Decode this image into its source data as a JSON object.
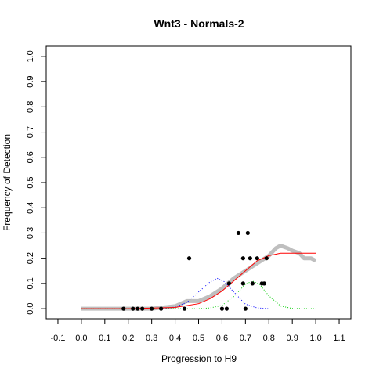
{
  "chart_data": {
    "type": "scatter",
    "title": "Wnt3 - Normals-2",
    "xlabel": "Progression to H9",
    "ylabel": "Frequency of Detection",
    "xlim": [
      -0.15,
      1.15
    ],
    "ylim": [
      -0.04,
      1.04
    ],
    "xticks": [
      -0.1,
      0.0,
      0.1,
      0.2,
      0.3,
      0.4,
      0.5,
      0.6,
      0.7,
      0.8,
      0.9,
      1.0,
      1.1
    ],
    "xtick_labels": [
      "-0.1",
      "0.0",
      "0.1",
      "0.2",
      "0.3",
      "0.4",
      "0.5",
      "0.6",
      "0.7",
      "0.8",
      "0.9",
      "1.0",
      "1.1"
    ],
    "yticks": [
      0.0,
      0.1,
      0.2,
      0.3,
      0.4,
      0.5,
      0.6,
      0.7,
      0.8,
      0.9,
      1.0
    ],
    "ytick_labels": [
      "0.0",
      "0.1",
      "0.2",
      "0.3",
      "0.4",
      "0.5",
      "0.6",
      "0.7",
      "0.8",
      "0.9",
      "1.0"
    ],
    "grid": false,
    "colors": {
      "points": "#000000",
      "smooth": "#bfbfbf",
      "fit": "#ff0000",
      "blue_density": "#0000ff",
      "green_density": "#00cc00"
    },
    "series": [
      {
        "type": "scatter",
        "x": [
          0.18,
          0.22,
          0.24,
          0.26,
          0.3,
          0.34,
          0.44,
          0.46,
          0.6,
          0.62,
          0.63,
          0.67,
          0.69,
          0.69,
          0.7,
          0.71,
          0.72,
          0.73,
          0.75,
          0.77,
          0.78,
          0.79
        ],
        "y": [
          0.0,
          0.0,
          0.0,
          0.0,
          0.0,
          0.0,
          0.0,
          0.2,
          0.0,
          0.0,
          0.1,
          0.3,
          0.2,
          0.1,
          0.0,
          0.3,
          0.2,
          0.1,
          0.2,
          0.1,
          0.1,
          0.2
        ]
      },
      {
        "type": "line",
        "style": "thick-gray",
        "x": [
          0.0,
          0.1,
          0.2,
          0.3,
          0.4,
          0.45,
          0.5,
          0.55,
          0.6,
          0.65,
          0.7,
          0.75,
          0.8,
          0.83,
          0.85,
          0.88,
          0.9,
          0.93,
          0.95,
          0.98,
          1.0
        ],
        "y": [
          0.0,
          0.0,
          0.0,
          0.0,
          0.01,
          0.03,
          0.03,
          0.05,
          0.08,
          0.12,
          0.15,
          0.18,
          0.21,
          0.24,
          0.25,
          0.24,
          0.23,
          0.22,
          0.2,
          0.2,
          0.19
        ]
      },
      {
        "type": "line",
        "style": "red",
        "x": [
          0.0,
          0.2,
          0.4,
          0.5,
          0.55,
          0.6,
          0.65,
          0.7,
          0.75,
          0.8,
          0.85,
          0.9,
          1.0
        ],
        "y": [
          0.0,
          0.0,
          0.005,
          0.02,
          0.04,
          0.07,
          0.11,
          0.15,
          0.19,
          0.21,
          0.22,
          0.22,
          0.22
        ]
      },
      {
        "type": "line",
        "style": "blue-dotted",
        "x": [
          0.35,
          0.4,
          0.45,
          0.5,
          0.55,
          0.58,
          0.61,
          0.65,
          0.7,
          0.75,
          0.8
        ],
        "y": [
          0.0,
          0.007,
          0.025,
          0.066,
          0.107,
          0.12,
          0.107,
          0.066,
          0.018,
          0.003,
          0.0
        ]
      },
      {
        "type": "line",
        "style": "green-dotted",
        "x": [
          0.0,
          0.5,
          0.55,
          0.6,
          0.65,
          0.7,
          0.73,
          0.76,
          0.8,
          0.85,
          0.9,
          1.0
        ],
        "y": [
          0.0,
          0.0,
          0.003,
          0.013,
          0.048,
          0.097,
          0.11,
          0.097,
          0.051,
          0.011,
          0.001,
          0.0
        ]
      }
    ]
  }
}
